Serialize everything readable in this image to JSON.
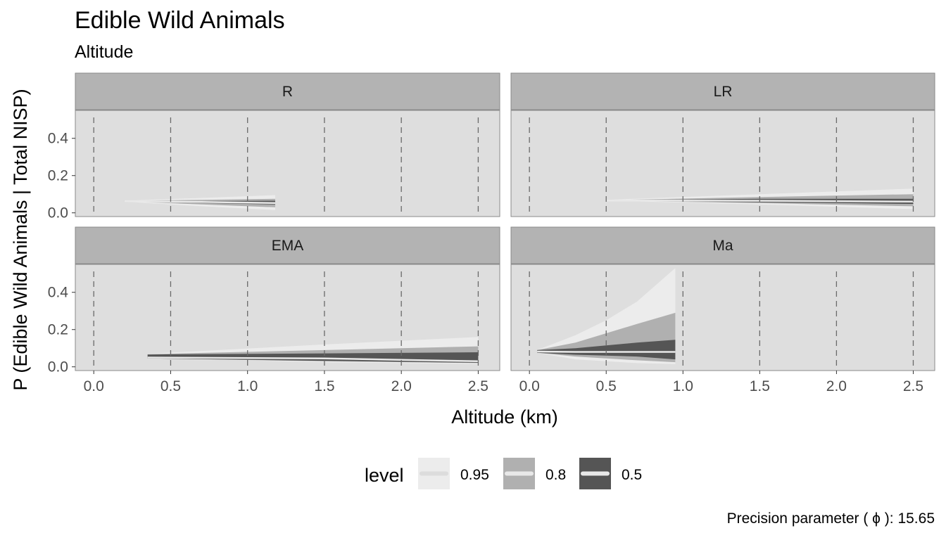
{
  "chart_data": {
    "type": "area",
    "title": "Edible Wild Animals",
    "subtitle": "Altitude",
    "xlabel": "Altitude (km)",
    "ylabel": "P (Edible Wild Animals | Total NISP)",
    "xlim": [
      -0.12,
      2.64
    ],
    "ylim": [
      -0.02,
      0.55
    ],
    "x_ticks": [
      0.0,
      0.5,
      1.0,
      1.5,
      2.0,
      2.5
    ],
    "x_tick_labels": [
      "0.0",
      "0.5",
      "1.0",
      "1.5",
      "2.0",
      "2.5"
    ],
    "y_ticks": [
      0.0,
      0.2,
      0.4
    ],
    "y_tick_labels": [
      "0.0",
      "0.2",
      "0.4"
    ],
    "vertical_reference_lines": [
      0.0,
      0.5,
      1.0,
      1.5,
      2.0,
      2.5
    ],
    "legend": {
      "title": "level",
      "position": "bottom",
      "entries": [
        "0.95",
        "0.8",
        "0.5"
      ]
    },
    "colors": {
      "panel_bg": "#dedede",
      "strip_bg": "#b3b3b3",
      "band_95": "#ececec",
      "band_80": "#b0b0b0",
      "band_50": "#555555",
      "median_line": "#e8e8e8",
      "reference_line": "#6a6a6a"
    },
    "caption": "Precision parameter ( ϕ ):  15.65",
    "panels": [
      {
        "label": "R",
        "x": [
          0.2,
          0.7,
          1.18
        ],
        "lower95": [
          0.06,
          0.035,
          0.015
        ],
        "upper95": [
          0.065,
          0.08,
          0.095
        ],
        "lower80": [
          0.062,
          0.045,
          0.03
        ],
        "upper80": [
          0.065,
          0.07,
          0.075
        ],
        "lower50": [
          0.062,
          0.052,
          0.045
        ],
        "upper50": [
          0.065,
          0.063,
          0.065
        ],
        "median": [
          0.063,
          0.058,
          0.053
        ]
      },
      {
        "label": "LR",
        "x": [
          0.5,
          1.5,
          2.5
        ],
        "lower95": [
          0.065,
          0.045,
          0.02
        ],
        "upper95": [
          0.07,
          0.1,
          0.13
        ],
        "lower80": [
          0.065,
          0.052,
          0.035
        ],
        "upper80": [
          0.068,
          0.085,
          0.1
        ],
        "lower50": [
          0.065,
          0.057,
          0.048
        ],
        "upper50": [
          0.068,
          0.075,
          0.075
        ],
        "median": [
          0.066,
          0.065,
          0.06
        ]
      },
      {
        "label": "EMA",
        "x": [
          0.35,
          1.5,
          2.5
        ],
        "lower95": [
          0.045,
          0.025,
          0.015
        ],
        "upper95": [
          0.07,
          0.12,
          0.16
        ],
        "lower80": [
          0.045,
          0.03,
          0.02
        ],
        "upper80": [
          0.068,
          0.09,
          0.11
        ],
        "lower50": [
          0.045,
          0.032,
          0.022
        ],
        "upper50": [
          0.066,
          0.072,
          0.078
        ],
        "median": [
          0.05,
          0.045,
          0.03
        ]
      },
      {
        "label": "Ma",
        "x": [
          0.05,
          0.3,
          0.5,
          0.7,
          0.95
        ],
        "lower95": [
          0.075,
          0.04,
          0.03,
          0.02,
          0.015
        ],
        "upper95": [
          0.09,
          0.17,
          0.25,
          0.35,
          0.53
        ],
        "lower80": [
          0.075,
          0.055,
          0.045,
          0.035,
          0.025
        ],
        "upper80": [
          0.09,
          0.13,
          0.18,
          0.23,
          0.29
        ],
        "lower50": [
          0.075,
          0.065,
          0.06,
          0.055,
          0.04
        ],
        "upper50": [
          0.09,
          0.1,
          0.115,
          0.13,
          0.145
        ],
        "median": [
          0.082,
          0.08,
          0.08,
          0.08,
          0.08
        ]
      }
    ]
  }
}
